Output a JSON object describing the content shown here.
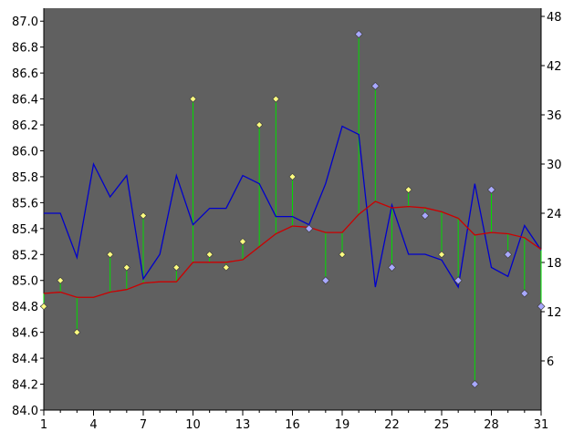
{
  "chart_data": {
    "type": "line",
    "title": "",
    "xlabel": "",
    "ylabel_left": "",
    "ylabel_right": "",
    "x": [
      1,
      2,
      3,
      4,
      5,
      6,
      7,
      8,
      9,
      10,
      11,
      12,
      13,
      14,
      15,
      16,
      17,
      18,
      19,
      20,
      21,
      22,
      23,
      24,
      25,
      26,
      27,
      28,
      29,
      30,
      31
    ],
    "x_ticks": [
      1,
      4,
      7,
      10,
      13,
      16,
      19,
      22,
      25,
      28,
      31
    ],
    "x_tick_labels": [
      "1",
      "4",
      "7",
      "10",
      "13",
      "16",
      "19",
      "22",
      "25",
      "28",
      "31"
    ],
    "xlim": [
      1,
      31
    ],
    "ylim_left": [
      84.0,
      87.1
    ],
    "y_left_ticks": [
      84.0,
      84.2,
      84.4,
      84.6,
      84.8,
      85.0,
      85.2,
      85.4,
      85.6,
      85.8,
      86.0,
      86.2,
      86.4,
      86.6,
      86.8,
      87.0
    ],
    "y_left_tick_labels": [
      "84.0",
      "84.2",
      "84.4",
      "84.6",
      "84.8",
      "85.0",
      "85.2",
      "85.4",
      "85.6",
      "85.8",
      "86.0",
      "86.2",
      "86.4",
      "86.6",
      "86.8",
      "87.0"
    ],
    "ylim_right": [
      0,
      49
    ],
    "y_right_ticks": [
      6,
      12,
      18,
      24,
      30,
      36,
      42,
      48
    ],
    "y_right_tick_labels": [
      "6",
      "12",
      "18",
      "24",
      "30",
      "36",
      "42",
      "48"
    ],
    "grid": false,
    "legend": "none",
    "series": [
      {
        "marker": "diamond",
        "axis": "left",
        "color": "#ffff80",
        "values": [
          84.8,
          85.0,
          84.6,
          null,
          85.2,
          85.1,
          85.5,
          null,
          85.1,
          86.4,
          85.2,
          85.1,
          85.3,
          86.2,
          86.4,
          85.8,
          null,
          null,
          85.2,
          null,
          null,
          null,
          85.7,
          null,
          85.2,
          null,
          null,
          null,
          null,
          null,
          null
        ]
      },
      {
        "marker": "diamond",
        "axis": "left",
        "color": "#a8a8ff",
        "values": [
          null,
          null,
          null,
          null,
          null,
          null,
          null,
          null,
          null,
          null,
          null,
          null,
          null,
          null,
          null,
          null,
          85.4,
          85.0,
          null,
          86.9,
          86.5,
          85.1,
          null,
          85.5,
          null,
          85.0,
          84.2,
          85.7,
          85.2,
          84.9,
          84.8
        ]
      },
      {
        "type": "line",
        "axis": "right",
        "color": "#0000cc",
        "values": [
          24,
          24,
          18.6,
          30,
          26,
          28.6,
          16,
          19,
          28.6,
          22.6,
          24.6,
          24.6,
          28.6,
          27.6,
          23.6,
          23.6,
          22.6,
          27.6,
          34.6,
          33.6,
          15,
          25,
          19,
          19,
          18.3,
          15,
          27.6,
          17.4,
          16.3,
          22.5,
          19.5
        ]
      },
      {
        "type": "line",
        "axis": "left",
        "color": "#cc0000",
        "values": [
          84.9,
          84.91,
          84.87,
          84.87,
          84.91,
          84.93,
          84.98,
          84.99,
          84.99,
          85.14,
          85.14,
          85.14,
          85.16,
          85.26,
          85.36,
          85.42,
          85.41,
          85.37,
          85.37,
          85.51,
          85.61,
          85.56,
          85.57,
          85.56,
          85.53,
          85.48,
          85.35,
          85.37,
          85.36,
          85.33,
          85.24
        ]
      },
      {
        "type": "drop-lines",
        "from": "red line to markers",
        "color": "#00dd00"
      }
    ]
  }
}
